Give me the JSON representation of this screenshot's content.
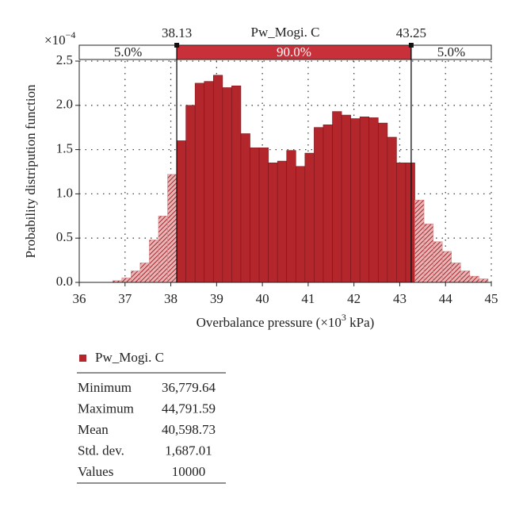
{
  "chart_data": {
    "type": "histogram",
    "title": "Pw_Mogi. C",
    "x_label": {
      "text": "Overbalance pressure (×10",
      "sup": "3",
      "tail": " kPa)"
    },
    "y_label": "Probability distripution function",
    "y_multiplier": {
      "base": "×10",
      "sup": "−4"
    },
    "bins": [
      36.73,
      36.93,
      37.13,
      37.33,
      37.53,
      37.73,
      37.93,
      38.13,
      38.33,
      38.53,
      38.73,
      38.93,
      39.13,
      39.33,
      39.53,
      39.73,
      39.93,
      40.13,
      40.33,
      40.53,
      40.73,
      40.93,
      41.13,
      41.33,
      41.53,
      41.73,
      41.93,
      42.13,
      42.33,
      42.53,
      42.73,
      42.93,
      43.13,
      43.33,
      43.53,
      43.73,
      43.93,
      44.13,
      44.33,
      44.53,
      44.73,
      44.93
    ],
    "values": [
      0.02,
      0.05,
      0.13,
      0.22,
      0.48,
      0.75,
      1.22,
      1.6,
      2.0,
      2.25,
      2.27,
      2.34,
      2.2,
      2.22,
      1.68,
      1.52,
      1.52,
      1.35,
      1.37,
      1.49,
      1.31,
      1.46,
      1.75,
      1.78,
      1.93,
      1.89,
      1.85,
      1.87,
      1.86,
      1.8,
      1.64,
      1.35,
      1.35,
      0.93,
      0.66,
      0.46,
      0.35,
      0.22,
      0.13,
      0.07,
      0.04
    ],
    "color": "#b3262c",
    "tail_color": "#d98a8c",
    "xlim": [
      36,
      45
    ],
    "xticks": [
      36,
      37,
      38,
      39,
      40,
      41,
      42,
      43,
      44,
      45
    ],
    "ylim": [
      0,
      2.5
    ],
    "yticks": [
      {
        "value": 0,
        "label": "0.0"
      },
      {
        "value": 0.5,
        "label": "0.5"
      },
      {
        "value": 1,
        "label": "1.0"
      },
      {
        "value": 1.5,
        "label": "1.5"
      },
      {
        "value": 2,
        "label": "2.0"
      },
      {
        "value": 2.5,
        "label": "2.5"
      }
    ],
    "grid": true,
    "delimiters": [
      38.13,
      43.25
    ],
    "region_percents": [
      5,
      90,
      5
    ],
    "region_percent_labels": [
      "5.0%",
      "90.0%",
      "5.0%"
    ],
    "legend": "Pw_Mogi. C",
    "stats": [
      [
        "Minimum",
        "36,779.64"
      ],
      [
        "Maximum",
        "44,791.59"
      ],
      [
        "Mean",
        "40,598.73"
      ],
      [
        "Std. dev.",
        "1,687.01"
      ],
      [
        "Values",
        "10000"
      ]
    ]
  }
}
